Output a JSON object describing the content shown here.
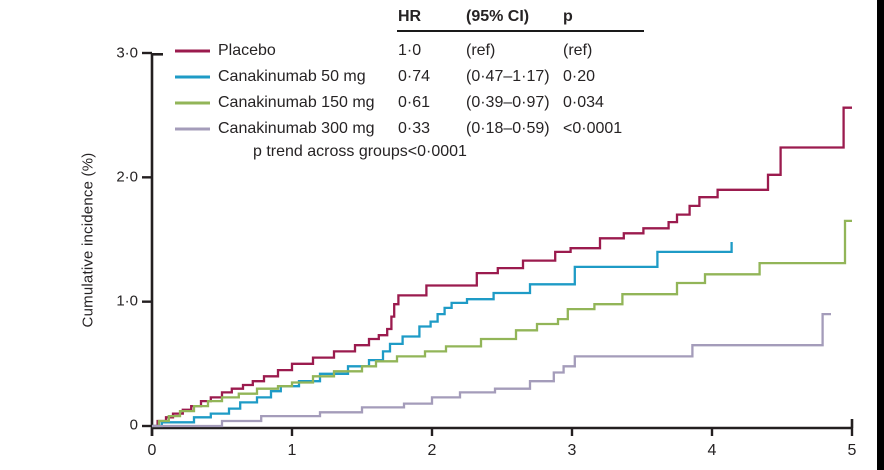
{
  "figure": {
    "ylabel": "Cumulative incidence (%)",
    "note": "p trend across groups<0·0001"
  },
  "table_header": {
    "hr": "HR",
    "ci": "(95% CI)",
    "p": "p"
  },
  "colors": {
    "axis": "#231f20",
    "text": "#262324",
    "edge_strip": "#000000"
  },
  "chart_data": {
    "type": "line",
    "variant": "step-kaplan-meier-cumulative-incidence",
    "title": "",
    "xlabel": "",
    "ylabel": "Cumulative incidence (%)",
    "xlim": [
      0,
      5
    ],
    "ylim": [
      0,
      3
    ],
    "x_ticks": [
      "0",
      "1",
      "2",
      "3",
      "4",
      "5"
    ],
    "y_ticks": [
      "0",
      "1·0",
      "2·0",
      "3·0"
    ],
    "grid": "off",
    "legend_position": "top-left",
    "series": [
      {
        "name": "Placebo",
        "color": "#9b1b4e",
        "hr": "1·0",
        "ci95": "(ref)",
        "p": "(ref)",
        "points": [
          [
            0,
            0
          ],
          [
            0.04,
            0.04
          ],
          [
            0.1,
            0.07
          ],
          [
            0.15,
            0.1
          ],
          [
            0.22,
            0.13
          ],
          [
            0.28,
            0.16
          ],
          [
            0.35,
            0.2
          ],
          [
            0.42,
            0.23
          ],
          [
            0.5,
            0.27
          ],
          [
            0.57,
            0.3
          ],
          [
            0.65,
            0.33
          ],
          [
            0.72,
            0.36
          ],
          [
            0.8,
            0.4
          ],
          [
            0.9,
            0.45
          ],
          [
            1.0,
            0.5
          ],
          [
            1.15,
            0.55
          ],
          [
            1.3,
            0.6
          ],
          [
            1.45,
            0.65
          ],
          [
            1.55,
            0.7
          ],
          [
            1.62,
            0.73
          ],
          [
            1.68,
            0.78
          ],
          [
            1.71,
            0.88
          ],
          [
            1.73,
            0.98
          ],
          [
            1.76,
            1.05
          ],
          [
            1.96,
            1.13
          ],
          [
            2.32,
            1.23
          ],
          [
            2.47,
            1.27
          ],
          [
            2.65,
            1.33
          ],
          [
            2.88,
            1.4
          ],
          [
            2.99,
            1.43
          ],
          [
            3.2,
            1.51
          ],
          [
            3.37,
            1.55
          ],
          [
            3.51,
            1.59
          ],
          [
            3.69,
            1.64
          ],
          [
            3.75,
            1.7
          ],
          [
            3.84,
            1.77
          ],
          [
            3.91,
            1.84
          ],
          [
            4.04,
            1.9
          ],
          [
            4.4,
            2.02
          ],
          [
            4.49,
            2.24
          ],
          [
            4.94,
            2.56
          ],
          [
            5.0,
            2.56
          ]
        ]
      },
      {
        "name": "Canakinumab 50 mg",
        "color": "#1e9bc6",
        "hr": "0·74",
        "ci95": "(0·47–1·17)",
        "p": "0·20",
        "points": [
          [
            0,
            0
          ],
          [
            0.07,
            0.03
          ],
          [
            0.3,
            0.07
          ],
          [
            0.42,
            0.1
          ],
          [
            0.55,
            0.14
          ],
          [
            0.63,
            0.19
          ],
          [
            0.75,
            0.23
          ],
          [
            0.85,
            0.28
          ],
          [
            0.92,
            0.32
          ],
          [
            1.05,
            0.36
          ],
          [
            1.2,
            0.42
          ],
          [
            1.4,
            0.48
          ],
          [
            1.55,
            0.53
          ],
          [
            1.65,
            0.6
          ],
          [
            1.7,
            0.66
          ],
          [
            1.79,
            0.72
          ],
          [
            1.91,
            0.8
          ],
          [
            1.99,
            0.84
          ],
          [
            2.04,
            0.9
          ],
          [
            2.09,
            0.95
          ],
          [
            2.14,
            0.99
          ],
          [
            2.25,
            1.02
          ],
          [
            2.44,
            1.07
          ],
          [
            2.7,
            1.14
          ],
          [
            3.02,
            1.28
          ],
          [
            3.61,
            1.4
          ],
          [
            4.14,
            1.48
          ]
        ]
      },
      {
        "name": "Canakinumab 150 mg",
        "color": "#92b558",
        "hr": "0·61",
        "ci95": "(0·39–0·97)",
        "p": "0·034",
        "points": [
          [
            0,
            0
          ],
          [
            0.05,
            0.04
          ],
          [
            0.12,
            0.08
          ],
          [
            0.2,
            0.12
          ],
          [
            0.3,
            0.16
          ],
          [
            0.4,
            0.2
          ],
          [
            0.5,
            0.23
          ],
          [
            0.62,
            0.26
          ],
          [
            0.75,
            0.3
          ],
          [
            0.9,
            0.32
          ],
          [
            1.0,
            0.35
          ],
          [
            1.15,
            0.4
          ],
          [
            1.3,
            0.44
          ],
          [
            1.5,
            0.48
          ],
          [
            1.6,
            0.52
          ],
          [
            1.75,
            0.56
          ],
          [
            1.95,
            0.6
          ],
          [
            2.1,
            0.64
          ],
          [
            2.35,
            0.7
          ],
          [
            2.6,
            0.77
          ],
          [
            2.75,
            0.82
          ],
          [
            2.9,
            0.86
          ],
          [
            2.97,
            0.94
          ],
          [
            3.16,
            0.98
          ],
          [
            3.36,
            1.06
          ],
          [
            3.75,
            1.15
          ],
          [
            3.95,
            1.22
          ],
          [
            4.34,
            1.31
          ],
          [
            4.95,
            1.65
          ],
          [
            5.0,
            1.65
          ]
        ]
      },
      {
        "name": "Canakinumab 300 mg",
        "color": "#a49cba",
        "hr": "0·33",
        "ci95": "(0·18–0·59)",
        "p": "<0·0001",
        "points": [
          [
            0,
            0
          ],
          [
            0.5,
            0.04
          ],
          [
            0.78,
            0.08
          ],
          [
            1.2,
            0.11
          ],
          [
            1.5,
            0.15
          ],
          [
            1.8,
            0.18
          ],
          [
            2.0,
            0.23
          ],
          [
            2.2,
            0.27
          ],
          [
            2.45,
            0.3
          ],
          [
            2.7,
            0.36
          ],
          [
            2.87,
            0.43
          ],
          [
            2.94,
            0.48
          ],
          [
            3.02,
            0.56
          ],
          [
            3.86,
            0.65
          ],
          [
            4.79,
            0.9
          ],
          [
            4.85,
            0.9
          ]
        ]
      }
    ]
  }
}
